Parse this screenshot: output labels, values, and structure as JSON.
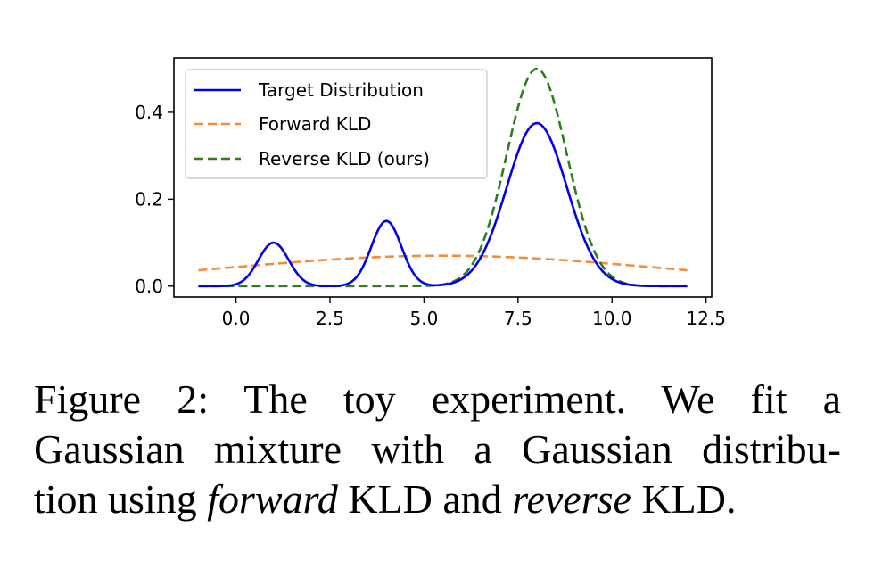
{
  "chart_data": {
    "type": "line",
    "xlim": [
      -1.65,
      12.65
    ],
    "ylim": [
      -0.025,
      0.525
    ],
    "xticks": [
      {
        "value": 0.0,
        "label": "0.0"
      },
      {
        "value": 2.5,
        "label": "2.5"
      },
      {
        "value": 5.0,
        "label": "5.0"
      },
      {
        "value": 7.5,
        "label": "7.5"
      },
      {
        "value": 10.0,
        "label": "10.0"
      },
      {
        "value": 12.5,
        "label": "12.5"
      }
    ],
    "yticks": [
      {
        "value": 0.0,
        "label": "0.0"
      },
      {
        "value": 0.2,
        "label": "0.2"
      },
      {
        "value": 0.4,
        "label": "0.4"
      }
    ],
    "grid": false,
    "legend_position": "top-left",
    "x_range": [
      -1,
      12
    ],
    "series": [
      {
        "name": "Target Distribution",
        "color": "#0000ee",
        "style": "solid",
        "gaussian_mixture": [
          {
            "mean": 1.0,
            "std": 0.4,
            "peak": 0.1
          },
          {
            "mean": 4.0,
            "std": 0.4,
            "peak": 0.15
          },
          {
            "mean": 8.0,
            "std": 0.8,
            "peak": 0.375
          }
        ]
      },
      {
        "name": "Forward KLD",
        "color": "#f28e3b",
        "style": "dashed",
        "gaussian_mixture": [
          {
            "mean": 5.5,
            "std": 5.7,
            "peak": 0.07
          }
        ]
      },
      {
        "name": "Reverse KLD (ours)",
        "color": "#2e7d1e",
        "style": "dashed",
        "gaussian_mixture": [
          {
            "mean": 8.0,
            "std": 0.8,
            "peak": 0.5
          }
        ]
      }
    ]
  },
  "caption": {
    "line1": "Figure 2:  The toy experiment.  We fit a",
    "line2": "Gaussian mixture with a Gaussian distribu-",
    "line3_a": "tion using ",
    "line3_b": "forward",
    "line3_c": " KLD and ",
    "line3_d": "reverse",
    "line3_e": " KLD."
  }
}
